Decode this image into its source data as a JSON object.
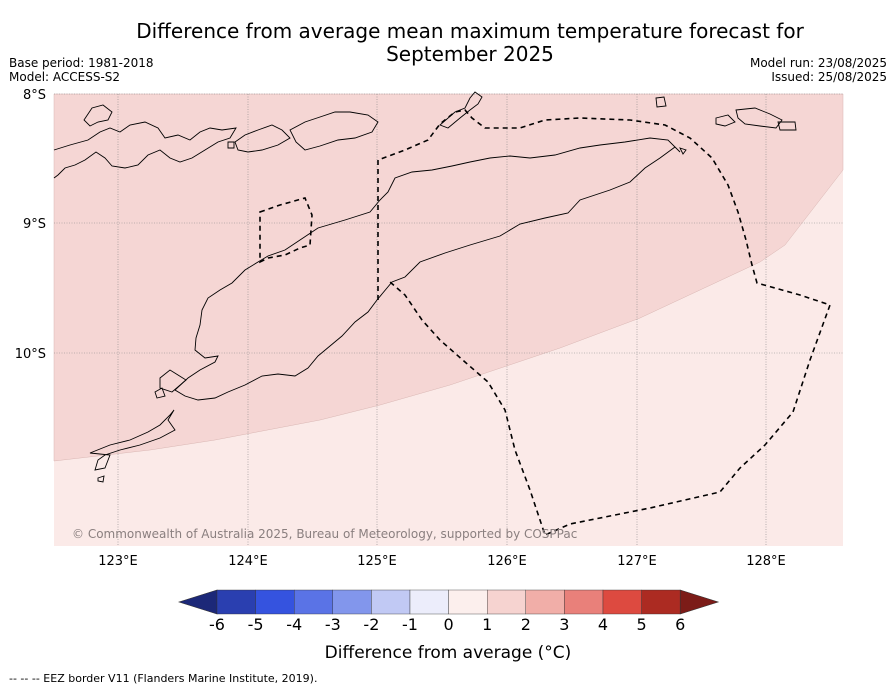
{
  "title": "Difference from average mean maximum temperature forecast for September 2025",
  "header_left": {
    "base_period": "Base period: 1981-2018",
    "model": "Model: ACCESS-S2"
  },
  "header_right": {
    "model_run": "Model run: 23/08/2025",
    "issued": "Issued: 25/08/2025"
  },
  "map": {
    "lat_labels": [
      "8°S",
      "9°S",
      "10°S"
    ],
    "lon_labels": [
      "123°E",
      "124°E",
      "125°E",
      "126°E",
      "127°E",
      "128°E"
    ],
    "copyright": "© Commonwealth of Australia 2025, Bureau of Meteorology, supported by COSPPac",
    "regions": [
      {
        "range": "1 to 2",
        "color": "#f5d6d4"
      },
      {
        "range": "0 to 1",
        "color": "#fbeae8"
      }
    ]
  },
  "colorbar": {
    "ticks": [
      "-6",
      "-5",
      "-4",
      "-3",
      "-2",
      "-1",
      "0",
      "1",
      "2",
      "3",
      "4",
      "5",
      "6"
    ],
    "colors": [
      "#1c2878",
      "#2a3fb0",
      "#3553df",
      "#5a73e6",
      "#8296ec",
      "#c1c9f4",
      "#ecedfb",
      "#fcefed",
      "#f6d3d0",
      "#f1aea8",
      "#e9807a",
      "#dd4a40",
      "#ac2b22",
      "#7c1c18"
    ],
    "label": "Difference from average (°C)"
  },
  "footnote": "--  --  -- EEZ border V11 (Flanders Marine Institute, 2019)."
}
